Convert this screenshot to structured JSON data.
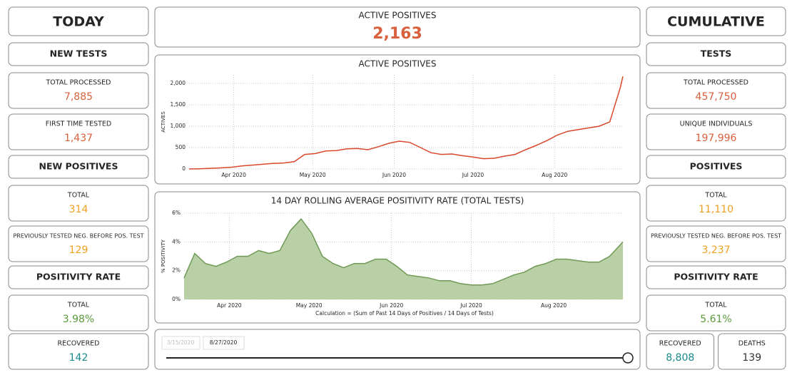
{
  "left": {
    "title": "TODAY",
    "cards": [
      {
        "heading": "NEW TESTS"
      },
      {
        "label": "TOTAL PROCESSED",
        "value": "7,885",
        "color": "#d9603d"
      },
      {
        "label": "FIRST TIME TESTED",
        "value": "1,437",
        "color": "#d9603d"
      },
      {
        "heading": "NEW POSITIVES"
      },
      {
        "label": "TOTAL",
        "value": "314",
        "color": "#f0a020"
      },
      {
        "label": "PREVIOUSLY TESTED NEG. BEFORE POS. TEST",
        "value": "129",
        "color": "#f0a020"
      },
      {
        "heading": "POSITIVITY RATE"
      },
      {
        "label": "TOTAL",
        "value": "3.98%",
        "color": "#5a9a3a"
      },
      {
        "label": "RECOVERED",
        "value": "142",
        "color": "#1a8a8a"
      }
    ]
  },
  "right": {
    "title": "CUMULATIVE",
    "cards": [
      {
        "heading": "TESTS"
      },
      {
        "label": "TOTAL PROCESSED",
        "value": "457,750",
        "color": "#d9603d"
      },
      {
        "label": "UNIQUE INDIVIDUALS",
        "value": "197,996",
        "color": "#d9603d"
      },
      {
        "heading": "POSITIVES"
      },
      {
        "label": "TOTAL",
        "value": "11,110",
        "color": "#f0a020"
      },
      {
        "label": "PREVIOUSLY TESTED NEG. BEFORE POS. TEST",
        "value": "3,237",
        "color": "#f0a020"
      },
      {
        "heading": "POSITIVITY RATE"
      },
      {
        "label": "TOTAL",
        "value": "5.61%",
        "color": "#5a9a3a"
      },
      {
        "row": [
          {
            "label": "RECOVERED",
            "value": "8,808",
            "color": "#1a8a8a"
          },
          {
            "label": "DEATHS",
            "value": "139",
            "color": "#333333"
          }
        ]
      }
    ]
  },
  "header": {
    "label": "ACTIVE POSITIVES",
    "value": "2,163"
  },
  "slider": {
    "start": "3/15/2020",
    "end": "8/27/2020"
  },
  "chart_data": [
    {
      "type": "line",
      "title": "ACTIVE POSITIVES",
      "y_label": "ACTIVES",
      "color": "#d9482b",
      "x": [
        "2020-03-15",
        "2020-03-19",
        "2020-03-23",
        "2020-03-27",
        "2020-03-31",
        "2020-04-04",
        "2020-04-08",
        "2020-04-12",
        "2020-04-16",
        "2020-04-20",
        "2020-04-24",
        "2020-04-28",
        "2020-05-02",
        "2020-05-06",
        "2020-05-10",
        "2020-05-14",
        "2020-05-18",
        "2020-05-22",
        "2020-05-26",
        "2020-05-30",
        "2020-06-03",
        "2020-06-07",
        "2020-06-11",
        "2020-06-15",
        "2020-06-19",
        "2020-06-23",
        "2020-06-27",
        "2020-07-01",
        "2020-07-05",
        "2020-07-09",
        "2020-07-13",
        "2020-07-17",
        "2020-07-21",
        "2020-07-25",
        "2020-07-29",
        "2020-08-02",
        "2020-08-06",
        "2020-08-10",
        "2020-08-14",
        "2020-08-18",
        "2020-08-22",
        "2020-08-26",
        "2020-08-27"
      ],
      "values": [
        0,
        5,
        15,
        25,
        40,
        70,
        90,
        110,
        130,
        140,
        170,
        340,
        360,
        420,
        430,
        470,
        480,
        450,
        520,
        600,
        650,
        620,
        500,
        380,
        340,
        350,
        310,
        280,
        240,
        250,
        300,
        340,
        450,
        550,
        660,
        790,
        880,
        920,
        960,
        1000,
        1100,
        1900,
        2163
      ],
      "xlim": [
        "2020-03-15",
        "2020-08-27"
      ],
      "xticks": [
        {
          "value": "2020-04-01",
          "label": "Apr 2020"
        },
        {
          "value": "2020-05-01",
          "label": "May 2020"
        },
        {
          "value": "2020-06-01",
          "label": "Jun 2020"
        },
        {
          "value": "2020-07-01",
          "label": "Jul 2020"
        },
        {
          "value": "2020-08-01",
          "label": "Aug 2020"
        }
      ],
      "ylim": [
        0,
        2200
      ],
      "yticks": [
        0,
        500,
        {
          "value": 1000,
          "label": "1,000"
        },
        {
          "value": 1500,
          "label": "1,500"
        },
        {
          "value": 2000,
          "label": "2,000"
        }
      ],
      "grid": true
    },
    {
      "type": "area",
      "title": "14 DAY ROLLING AVERAGE POSITIVITY RATE (TOTAL TESTS)",
      "y_label": "% POSITIVITY",
      "note": "Calculation = (Sum of Past 14 Days of Positives / 14 Days of Tests)",
      "color": "#b9cfa6",
      "line_color": "#6f9a55",
      "x": [
        "2020-03-15",
        "2020-03-19",
        "2020-03-23",
        "2020-03-27",
        "2020-03-31",
        "2020-04-04",
        "2020-04-08",
        "2020-04-12",
        "2020-04-16",
        "2020-04-20",
        "2020-04-24",
        "2020-04-28",
        "2020-05-02",
        "2020-05-06",
        "2020-05-10",
        "2020-05-14",
        "2020-05-18",
        "2020-05-22",
        "2020-05-26",
        "2020-05-30",
        "2020-06-03",
        "2020-06-07",
        "2020-06-11",
        "2020-06-15",
        "2020-06-19",
        "2020-06-23",
        "2020-06-27",
        "2020-07-01",
        "2020-07-05",
        "2020-07-09",
        "2020-07-13",
        "2020-07-17",
        "2020-07-21",
        "2020-07-25",
        "2020-07-29",
        "2020-08-02",
        "2020-08-06",
        "2020-08-10",
        "2020-08-14",
        "2020-08-18",
        "2020-08-22",
        "2020-08-26",
        "2020-08-27"
      ],
      "values": [
        1.5,
        3.2,
        2.5,
        2.3,
        2.6,
        3.0,
        3.0,
        3.4,
        3.2,
        3.4,
        4.8,
        5.6,
        4.6,
        3.0,
        2.5,
        2.2,
        2.5,
        2.5,
        2.8,
        2.8,
        2.3,
        1.7,
        1.6,
        1.5,
        1.3,
        1.3,
        1.1,
        1.0,
        1.0,
        1.1,
        1.4,
        1.7,
        1.9,
        2.3,
        2.5,
        2.8,
        2.8,
        2.7,
        2.6,
        2.6,
        3.0,
        3.8,
        4.0
      ],
      "xlim": [
        "2020-03-15",
        "2020-08-27"
      ],
      "xticks": [
        {
          "value": "2020-04-01",
          "label": "Apr 2020"
        },
        {
          "value": "2020-05-01",
          "label": "May 2020"
        },
        {
          "value": "2020-06-01",
          "label": "Jun 2020"
        },
        {
          "value": "2020-07-01",
          "label": "Jul 2020"
        },
        {
          "value": "2020-08-01",
          "label": "Aug 2020"
        }
      ],
      "ylim": [
        0,
        6
      ],
      "yticks": [
        {
          "value": 0,
          "label": "0%"
        },
        {
          "value": 2,
          "label": "2%"
        },
        {
          "value": 4,
          "label": "4%"
        },
        {
          "value": 6,
          "label": "6%"
        }
      ],
      "grid": true
    }
  ]
}
